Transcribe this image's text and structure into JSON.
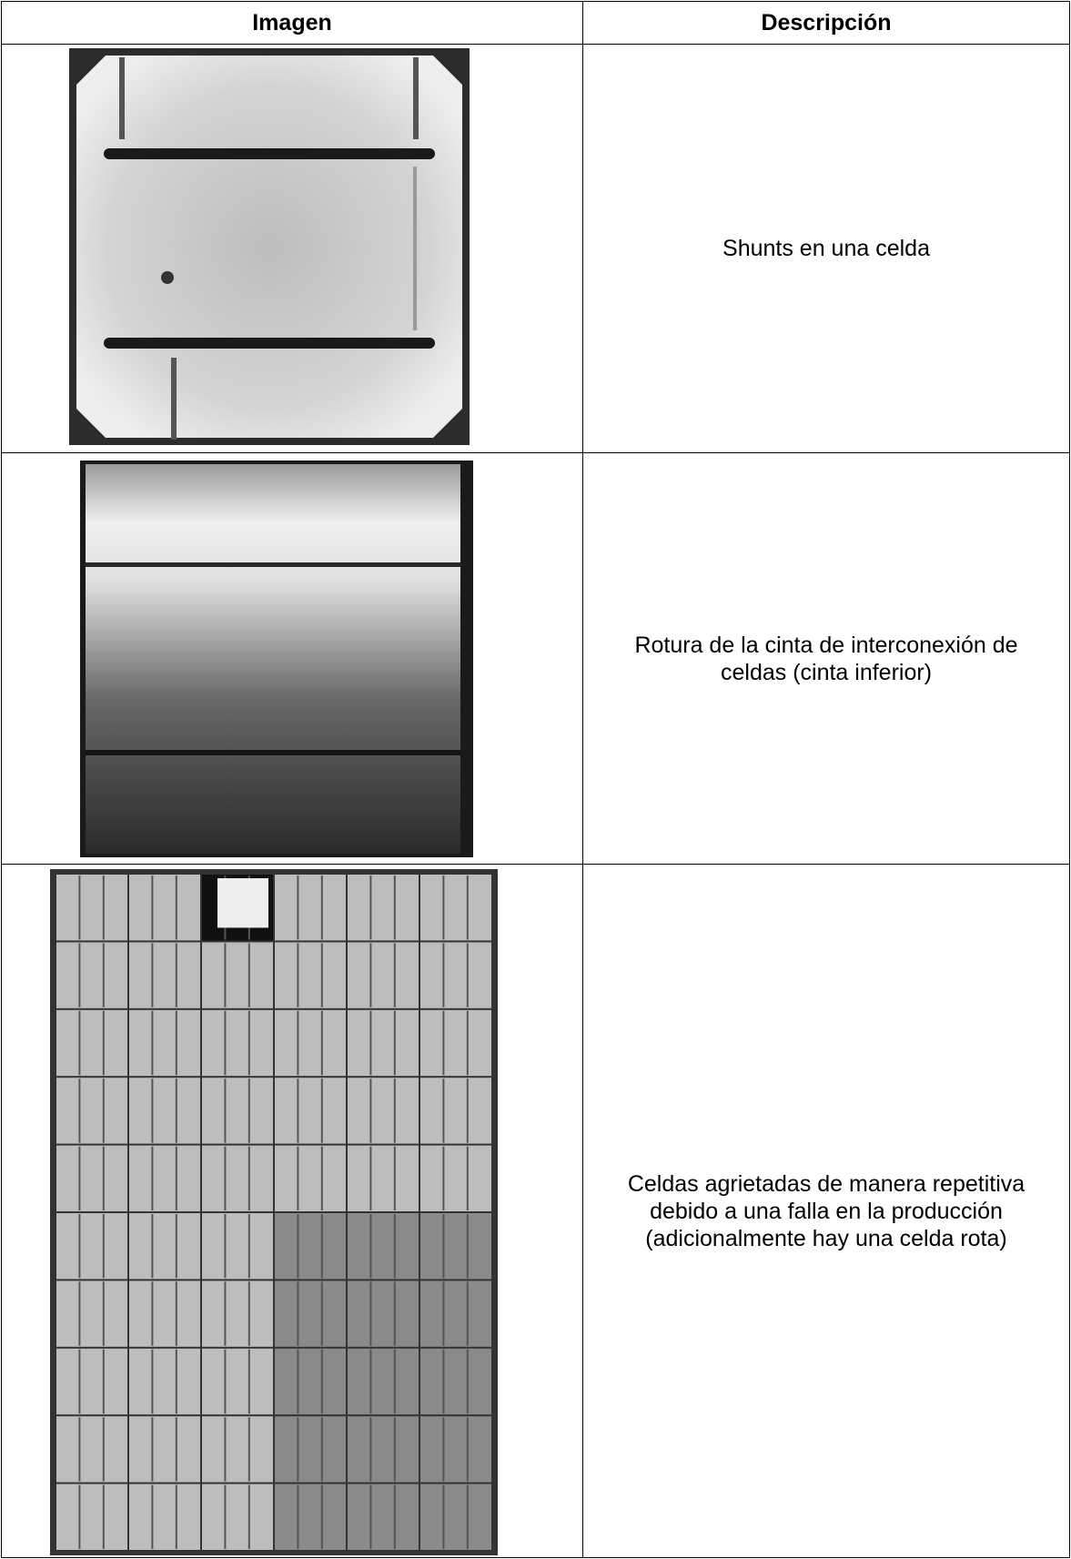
{
  "table": {
    "header": [
      "Imagen",
      "Descripción"
    ],
    "rows": [
      {
        "description": [
          "Shunts en una celda"
        ]
      },
      {
        "description": [
          "Rotura de la cinta de interconexión de",
          "celdas (cinta inferior)"
        ]
      },
      {
        "description": [
          "Celdas agrietadas de manera repetitiva",
          "debido a una falla en la producción",
          "(adicionalmente hay una celda rota)"
        ]
      }
    ]
  }
}
